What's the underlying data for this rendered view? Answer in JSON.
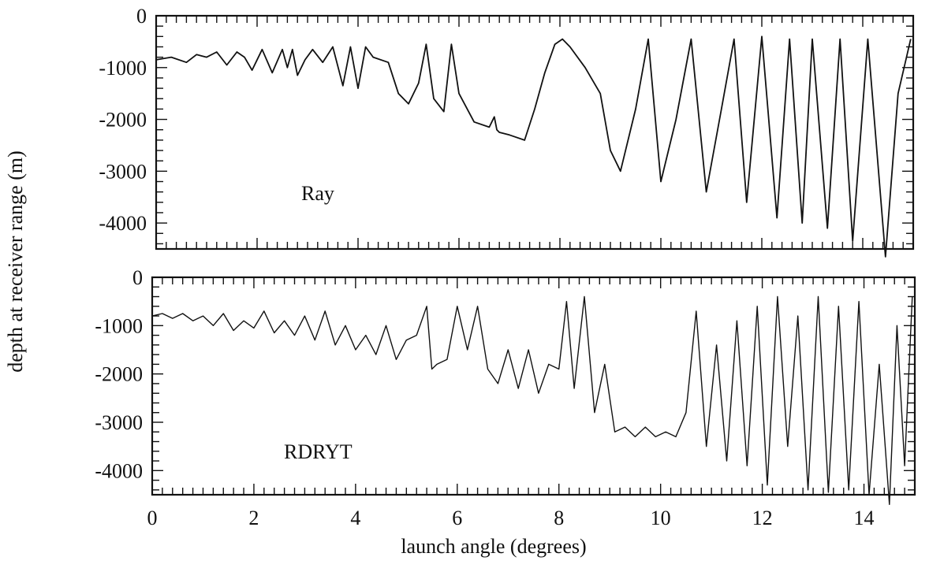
{
  "chart_data": [
    {
      "type": "line",
      "panel_label": "Ray",
      "xlim": [
        0,
        15
      ],
      "ylim": [
        -4500,
        0
      ],
      "x_ticks": [
        0,
        2,
        4,
        6,
        8,
        10,
        12,
        14
      ],
      "y_ticks": [
        0,
        -1000,
        -2000,
        -3000,
        -4000
      ],
      "y_tick_labels": [
        "0",
        "-1000",
        "-2000",
        "-3000",
        "-4000"
      ],
      "series": [
        {
          "x": [
            0,
            0.3,
            0.6,
            0.8,
            1.0,
            1.2,
            1.4,
            1.6,
            1.75,
            1.9,
            2.1,
            2.3,
            2.5,
            2.6,
            2.7,
            2.8,
            2.95,
            3.1,
            3.3,
            3.5,
            3.7,
            3.85,
            4.0,
            4.15,
            4.3,
            4.6,
            4.8,
            5.0,
            5.2,
            5.35,
            5.5,
            5.7,
            5.85,
            6.0,
            6.3,
            6.6,
            6.7,
            6.75,
            6.8,
            7.0,
            7.3,
            7.5,
            7.7,
            7.9,
            8.05,
            8.2,
            8.5,
            8.8,
            9.0,
            9.2,
            9.5,
            9.75,
            10.0,
            10.3,
            10.6,
            10.9,
            11.2,
            11.45,
            11.7,
            12.0,
            12.3,
            12.55,
            12.8,
            13.0,
            13.3,
            13.55,
            13.8,
            14.1,
            14.45,
            14.7,
            14.95
          ],
          "y": [
            -850,
            -800,
            -900,
            -750,
            -800,
            -700,
            -950,
            -700,
            -800,
            -1050,
            -650,
            -1100,
            -650,
            -1000,
            -650,
            -1150,
            -850,
            -650,
            -900,
            -600,
            -1350,
            -600,
            -1400,
            -600,
            -800,
            -900,
            -1500,
            -1700,
            -1300,
            -550,
            -1600,
            -1850,
            -550,
            -1500,
            -2050,
            -2150,
            -1950,
            -2200,
            -2250,
            -2300,
            -2400,
            -1800,
            -1100,
            -550,
            -450,
            -600,
            -1000,
            -1500,
            -2600,
            -3000,
            -1800,
            -450,
            -3200,
            -2000,
            -450,
            -3400,
            -1800,
            -450,
            -3600,
            -400,
            -3900,
            -450,
            -4000,
            -450,
            -4100,
            -450,
            -4350,
            -450,
            -4650,
            -1500,
            -450
          ]
        }
      ]
    },
    {
      "type": "line",
      "panel_label": "RDRYT",
      "xlim": [
        0,
        15
      ],
      "ylim": [
        -4500,
        0
      ],
      "x_ticks": [
        0,
        2,
        4,
        6,
        8,
        10,
        12,
        14
      ],
      "x_tick_labels": [
        "0",
        "2",
        "4",
        "6",
        "8",
        "10",
        "12",
        "14"
      ],
      "y_ticks": [
        0,
        -1000,
        -2000,
        -3000,
        -4000
      ],
      "y_tick_labels": [
        "0",
        "-1000",
        "-2000",
        "-3000",
        "-4000"
      ],
      "xlabel": "launch angle (degrees)",
      "series": [
        {
          "x": [
            0,
            0.2,
            0.4,
            0.6,
            0.8,
            1.0,
            1.2,
            1.4,
            1.6,
            1.8,
            2.0,
            2.2,
            2.4,
            2.6,
            2.8,
            3.0,
            3.2,
            3.4,
            3.6,
            3.8,
            4.0,
            4.2,
            4.4,
            4.6,
            4.8,
            5.0,
            5.2,
            5.4,
            5.5,
            5.6,
            5.8,
            6.0,
            6.2,
            6.4,
            6.6,
            6.8,
            7.0,
            7.2,
            7.4,
            7.6,
            7.8,
            8.0,
            8.15,
            8.3,
            8.5,
            8.7,
            8.9,
            9.1,
            9.3,
            9.5,
            9.7,
            9.9,
            10.1,
            10.3,
            10.5,
            10.7,
            10.9,
            11.1,
            11.3,
            11.5,
            11.7,
            11.9,
            12.1,
            12.3,
            12.5,
            12.7,
            12.9,
            13.1,
            13.3,
            13.5,
            13.7,
            13.9,
            14.1,
            14.3,
            14.5,
            14.65,
            14.8,
            14.95
          ],
          "y": [
            -800,
            -750,
            -850,
            -750,
            -900,
            -800,
            -1000,
            -750,
            -1100,
            -900,
            -1050,
            -700,
            -1150,
            -900,
            -1200,
            -800,
            -1300,
            -700,
            -1400,
            -1000,
            -1500,
            -1200,
            -1600,
            -1000,
            -1700,
            -1300,
            -1200,
            -600,
            -1900,
            -1800,
            -1700,
            -600,
            -1500,
            -600,
            -1900,
            -2200,
            -1500,
            -2300,
            -1500,
            -2400,
            -1800,
            -1900,
            -500,
            -2300,
            -400,
            -2800,
            -1800,
            -3200,
            -3100,
            -3300,
            -3100,
            -3300,
            -3200,
            -3300,
            -2800,
            -700,
            -3500,
            -1400,
            -3800,
            -900,
            -3900,
            -600,
            -4300,
            -400,
            -3500,
            -800,
            -4400,
            -400,
            -4450,
            -600,
            -4400,
            -500,
            -4500,
            -1800,
            -4700,
            -1000,
            -3900,
            -400
          ]
        }
      ]
    }
  ],
  "ylabel": "depth at receiver range (m)"
}
